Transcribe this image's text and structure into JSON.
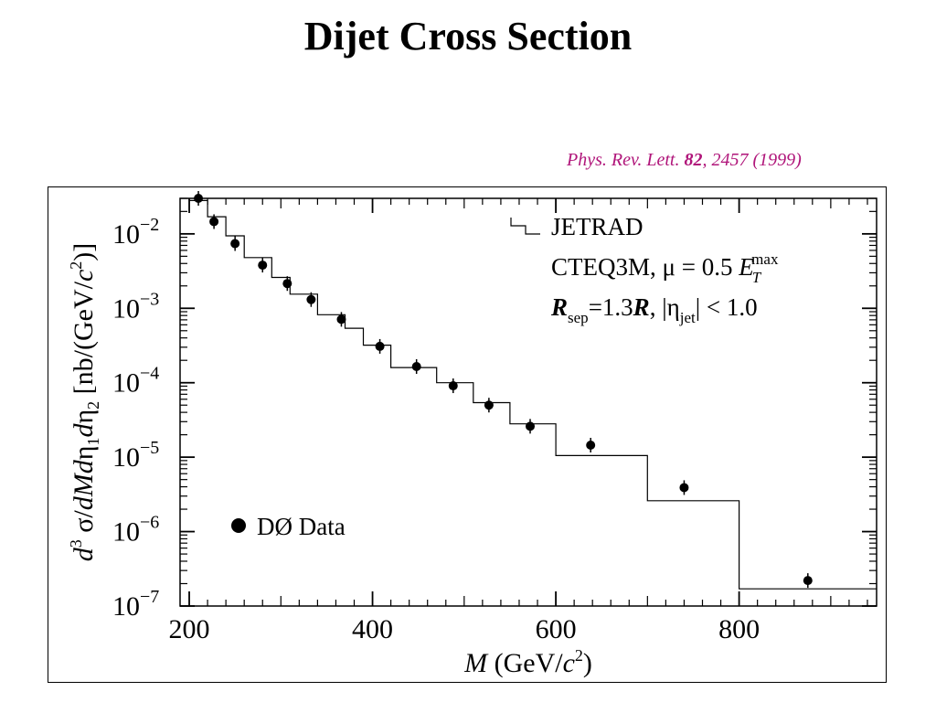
{
  "slide": {
    "title": "Dijet Cross Section",
    "citation_journal": "Phys. Rev. Lett.",
    "citation_volume": "82",
    "citation_rest": ", 2457 (1999)"
  },
  "chart_data": {
    "type": "scatter",
    "title": "",
    "xlabel": "M (GeV/c²)",
    "ylabel": "d³σ/dMdη₁dη₂ [nb/(GeV/c²)]",
    "xlim": [
      190,
      950
    ],
    "ylim": [
      1e-07,
      0.03
    ],
    "yscale": "log",
    "x_ticks": [
      200,
      400,
      600,
      800
    ],
    "y_ticks": [
      {
        "value": 0.01,
        "base": "10",
        "exp": "−2"
      },
      {
        "value": 0.001,
        "base": "10",
        "exp": "−3"
      },
      {
        "value": 0.0001,
        "base": "10",
        "exp": "−4"
      },
      {
        "value": 1e-05,
        "base": "10",
        "exp": "−5"
      },
      {
        "value": 1e-06,
        "base": "10",
        "exp": "−6"
      },
      {
        "value": 1e-07,
        "base": "10",
        "exp": "−7"
      }
    ],
    "legend_position": "bottom-left",
    "data_series": {
      "name": "DØ Data",
      "x": [
        210,
        227,
        250,
        280,
        307,
        333,
        366,
        408,
        448,
        488,
        527,
        572,
        638,
        740,
        875
      ],
      "y": [
        0.03,
        0.0146,
        0.0074,
        0.0038,
        0.00215,
        0.00131,
        0.00071,
        0.000308,
        0.000165,
        9.1e-05,
        5e-05,
        2.6e-05,
        1.45e-05,
        3.9e-06,
        2.2e-07
      ],
      "color": "#000000"
    },
    "theory_series": {
      "name": "JETRAD",
      "bin_edges": [
        200,
        220,
        240,
        260,
        290,
        310,
        340,
        370,
        390,
        420,
        470,
        510,
        550,
        600,
        700,
        800,
        960
      ],
      "values": [
        0.028,
        0.017,
        0.0094,
        0.0048,
        0.0026,
        0.00155,
        0.00082,
        0.00054,
        0.00032,
        0.00016,
        0.0001,
        5.4e-05,
        2.8e-05,
        1.05e-05,
        2.6e-06,
        1.7e-07
      ]
    },
    "annotations": {
      "theory_label": "JETRAD",
      "pdf_text": "CTEQ3M, μ = 0.5 ",
      "et_symbol": "E",
      "et_sub": "T",
      "et_sup": "max",
      "rsep_symbol": "R",
      "rsep_sub": "sep",
      "rsep_rest": "=1.3",
      "rsep_symbol2": "R",
      "eta_text": ",  |η",
      "eta_sub": "jet",
      "eta_rest": "| < 1.0"
    },
    "axis_label_parts": {
      "x_var": "M",
      "x_unit_pre": " (GeV/",
      "x_unit_c": "c",
      "x_unit_exp": "2",
      "x_unit_post": ")",
      "y_d": "d",
      "y_exp3": "3",
      "y_sigma": " σ/",
      "y_dM": "dMd",
      "y_eta": "η",
      "y_sub1": "1",
      "y_d2": "d",
      "y_eta2": "η",
      "y_sub2": "2",
      "y_unit_open": " [nb/(GeV/",
      "y_unit_c": "c",
      "y_unit_exp": "2",
      "y_unit_close": ")]"
    }
  }
}
